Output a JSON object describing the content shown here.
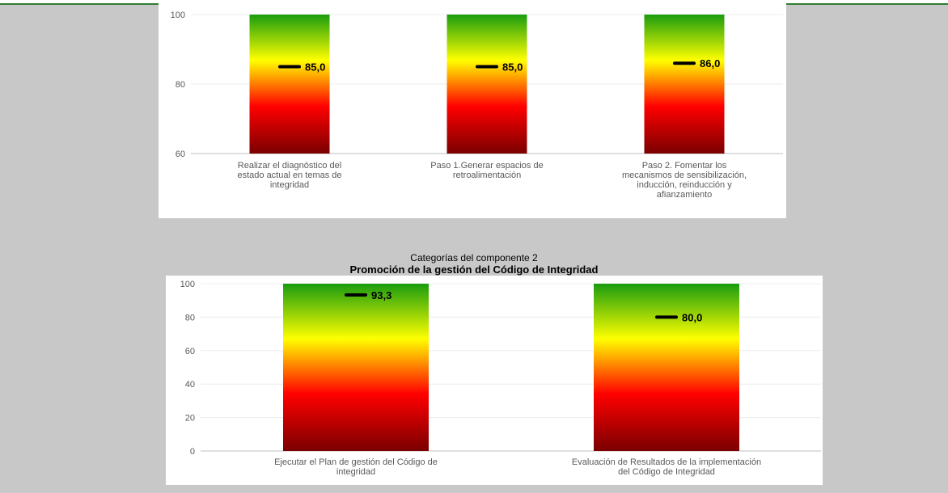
{
  "chart_data": [
    {
      "type": "bar",
      "subtitle": "",
      "title": "",
      "categories": [
        [
          "Realizar el diagnóstico del",
          "estado actual en temas de",
          "integridad"
        ],
        [
          "Paso 1.Generar espacios de",
          "retroalimentación"
        ],
        [
          "Paso 2. Fomentar los",
          "mecanismos de sensibilización,",
          "inducción, reinducción y",
          "afianzamiento"
        ]
      ],
      "values": [
        85.0,
        85.0,
        86.0
      ],
      "value_labels": [
        "85,0",
        "85,0",
        "86,0"
      ],
      "ylim": [
        60,
        100
      ],
      "yticks": [
        60,
        80,
        100
      ],
      "gradient": [
        "#1a9c0f",
        "#ffff00",
        "#ff0000",
        "#7a0000"
      ]
    },
    {
      "type": "bar",
      "subtitle": "Categorías del componente 2",
      "title": "Promoción de la gestión del Código de Integridad",
      "categories": [
        [
          "Ejecutar el Plan de gestión del Código de",
          "integridad"
        ],
        [
          "Evaluación de Resultados de la implementación",
          "del Código de Integridad"
        ]
      ],
      "values": [
        93.3,
        80.0
      ],
      "value_labels": [
        "93,3",
        "80,0"
      ],
      "ylim": [
        0,
        100
      ],
      "yticks": [
        0,
        20,
        40,
        60,
        80,
        100
      ],
      "gradient": [
        "#1a9c0f",
        "#ffff00",
        "#ff0000",
        "#7a0000"
      ]
    }
  ]
}
